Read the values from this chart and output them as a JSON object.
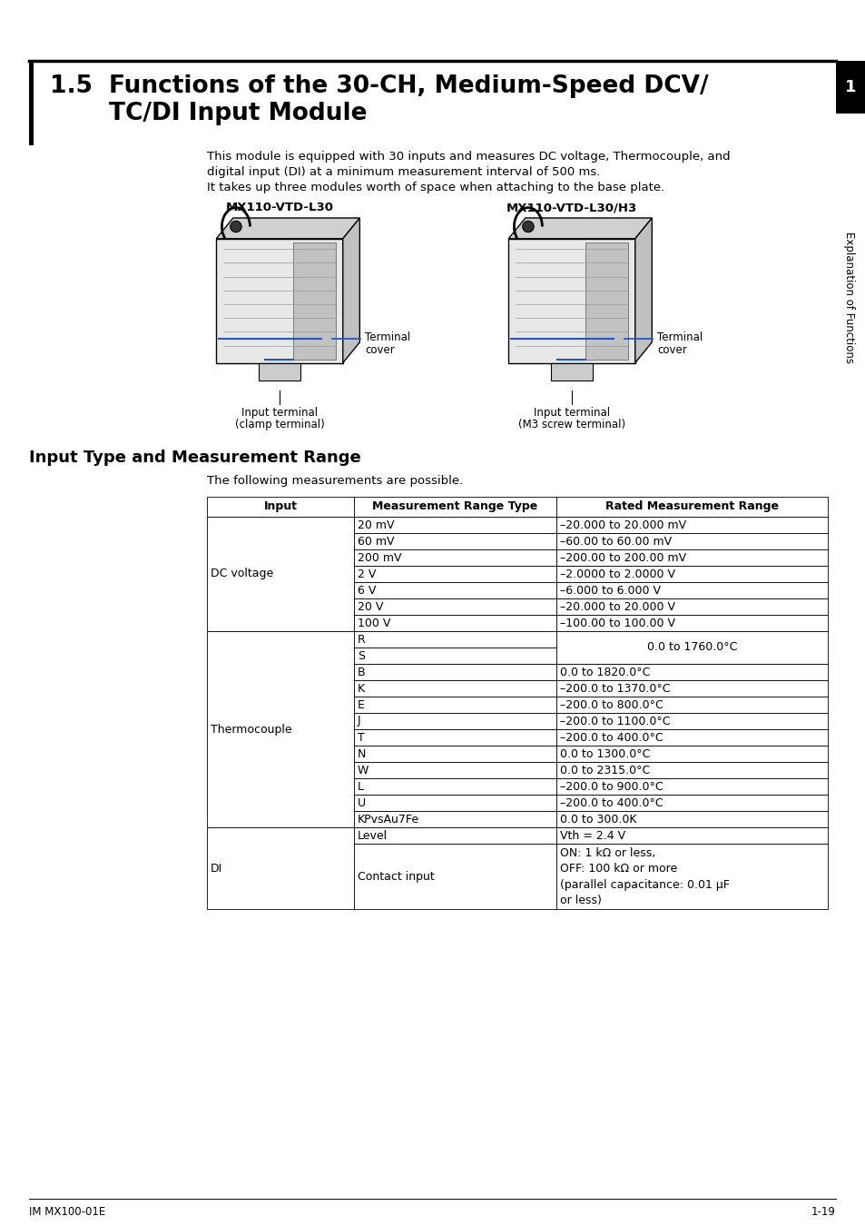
{
  "page_bg": "#ffffff",
  "section_number": "1.5",
  "section_title_line1": "Functions of the 30-CH, Medium-Speed DCV/",
  "section_title_line2": "TC/DI Input Module",
  "body_text_line1": "This module is equipped with 30 inputs and measures DC voltage, Thermocouple, and",
  "body_text_line2": "digital input (DI) at a minimum measurement interval of 500 ms.",
  "body_text_line3": "It takes up three modules worth of space when attaching to the base plate.",
  "device1_label": "MX110-VTD-L30",
  "device2_label": "MX110-VTD-L30/H3",
  "section2_title": "Input Type and Measurement Range",
  "table_intro": "The following measurements are possible.",
  "col_headers": [
    "Input",
    "Measurement Range Type",
    "Rated Measurement Range"
  ],
  "sidebar_text": "Explanation of Functions",
  "sidebar_number": "1",
  "footer_left": "IM MX100-01E",
  "footer_right": "1-19",
  "dc_rows": [
    [
      "20 mV",
      "–20.000 to 20.000 mV"
    ],
    [
      "60 mV",
      "–60.00 to 60.00 mV"
    ],
    [
      "200 mV",
      "–200.00 to 200.00 mV"
    ],
    [
      "2 V",
      "–2.0000 to 2.0000 V"
    ],
    [
      "6 V",
      "–6.000 to 6.000 V"
    ],
    [
      "20 V",
      "–20.000 to 20.000 V"
    ],
    [
      "100 V",
      "–100.00 to 100.00 V"
    ]
  ],
  "tc_rows": [
    [
      "R",
      null
    ],
    [
      "S",
      null
    ],
    [
      "B",
      "0.0 to 1820.0°C"
    ],
    [
      "K",
      "–200.0 to 1370.0°C"
    ],
    [
      "E",
      "–200.0 to 800.0°C"
    ],
    [
      "J",
      "–200.0 to 1100.0°C"
    ],
    [
      "T",
      "–200.0 to 400.0°C"
    ],
    [
      "N",
      "0.0 to 1300.0°C"
    ],
    [
      "W",
      "0.0 to 2315.0°C"
    ],
    [
      "L",
      "–200.0 to 900.0°C"
    ],
    [
      "U",
      "–200.0 to 400.0°C"
    ],
    [
      "KPvsAu7Fe",
      "0.0 to 300.0K"
    ]
  ],
  "rs_range": "0.0 to 1760.0°C",
  "di_level_range": "Vth = 2.4 V",
  "di_contact_range": "ON: 1 kΩ or less,\nOFF: 100 kΩ or more\n(parallel capacitance: 0.01 μF\nor less)"
}
